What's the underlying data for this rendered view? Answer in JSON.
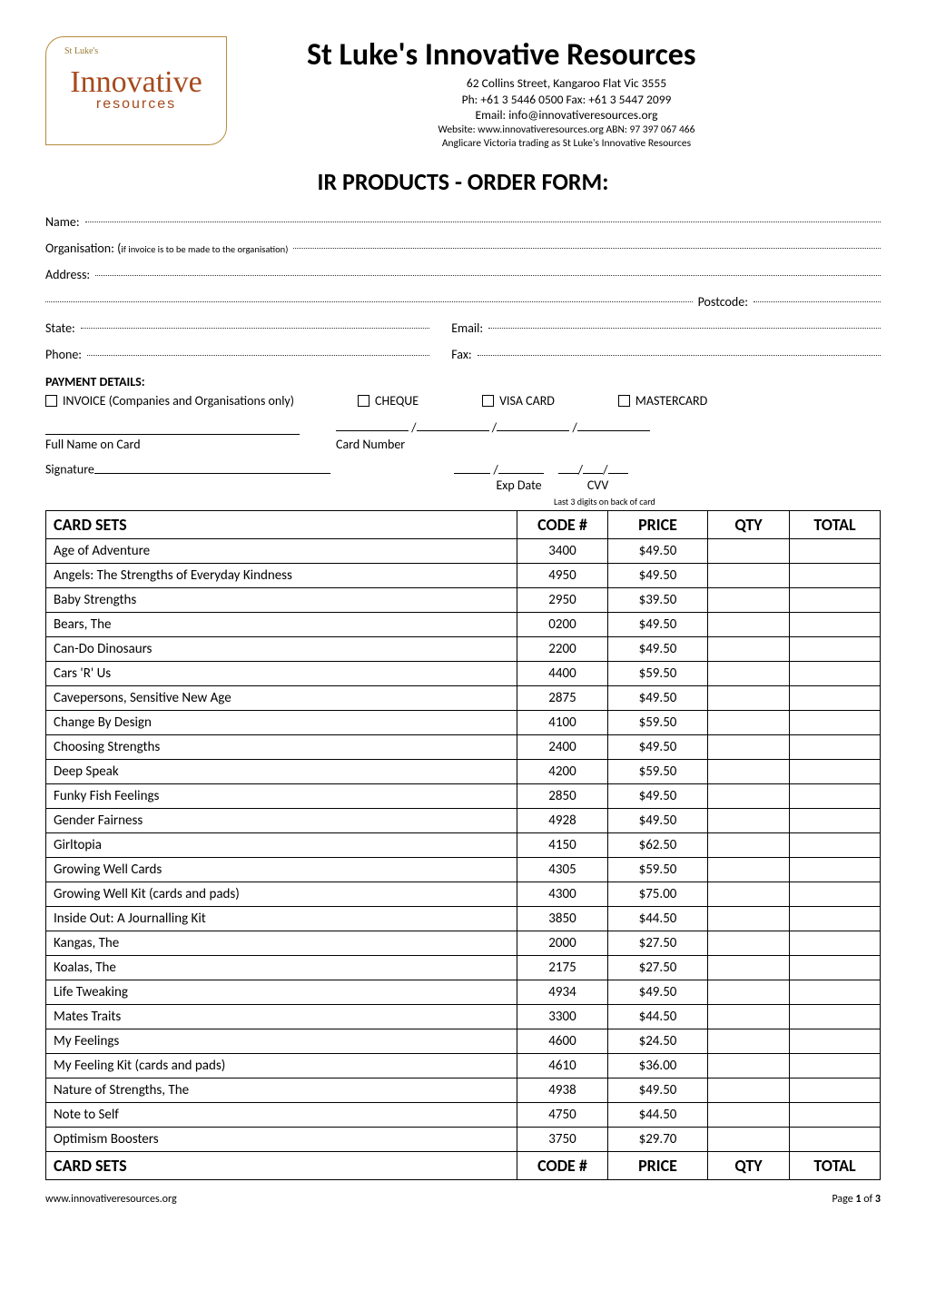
{
  "header": {
    "org_name": "St Luke's Innovative Resources",
    "address": "62 Collins Street, Kangaroo Flat   Vic   3555",
    "phone_fax": "Ph:  +61 3 5446 0500 Fax:  +61 3 5447 2099",
    "email_line": "Email:  info@innovativeresources.org",
    "website_abn": "Website:  www.innovativeresources.org ABN:  97 397 067 466",
    "trading_as": "Anglicare Victoria trading as St Luke's Innovative Resources",
    "logo_tag": "St Luke's",
    "logo_main": "Innovative",
    "logo_sub": "resources"
  },
  "form_title": "IR PRODUCTS - ORDER FORM:",
  "fields": {
    "name_label": "Name:",
    "org_label": "Organisation: (",
    "org_note": "if invoice is to be made to the organisation)",
    "address_label": "Address:",
    "postcode_label": "Postcode:",
    "state_label": "State:",
    "email_label": "Email:",
    "phone_label": "Phone:",
    "fax_label": "Fax:"
  },
  "payment": {
    "heading": "PAYMENT DETAILS:",
    "options": [
      "INVOICE (Companies and Organisations only)",
      "CHEQUE",
      "VISA CARD",
      "MASTERCARD"
    ],
    "full_name_label": "Full Name on Card",
    "card_number_label": "Card Number",
    "signature_label": "Signature",
    "exp_date_label": "Exp Date",
    "cvv_label": "CVV",
    "cvv_hint": "Last 3 digits on back of card"
  },
  "table": {
    "headers": {
      "name": "CARD SETS",
      "code": "CODE #",
      "price": "PRICE",
      "qty": "QTY",
      "total": "TOTAL"
    },
    "rows": [
      {
        "name": "Age of Adventure",
        "code": "3400",
        "price": "$49.50"
      },
      {
        "name": "Angels: The Strengths of Everyday Kindness",
        "code": "4950",
        "price": "$49.50"
      },
      {
        "name": "Baby Strengths",
        "code": "2950",
        "price": "$39.50"
      },
      {
        "name": "Bears, The",
        "code": "0200",
        "price": "$49.50"
      },
      {
        "name": "Can-Do Dinosaurs",
        "code": "2200",
        "price": "$49.50"
      },
      {
        "name": "Cars 'R' Us",
        "code": "4400",
        "price": "$59.50"
      },
      {
        "name": "Cavepersons, Sensitive New Age",
        "code": "2875",
        "price": "$49.50"
      },
      {
        "name": "Change By Design",
        "code": "4100",
        "price": "$59.50"
      },
      {
        "name": "Choosing Strengths",
        "code": "2400",
        "price": "$49.50"
      },
      {
        "name": "Deep Speak",
        "code": "4200",
        "price": "$59.50"
      },
      {
        "name": "Funky Fish Feelings",
        "code": "2850",
        "price": "$49.50"
      },
      {
        "name": "Gender Fairness",
        "code": "4928",
        "price": "$49.50"
      },
      {
        "name": "Girltopia",
        "code": "4150",
        "price": "$62.50"
      },
      {
        "name": "Growing Well Cards",
        "code": "4305",
        "price": "$59.50"
      },
      {
        "name": "Growing Well Kit (cards and pads)",
        "code": "4300",
        "price": "$75.00"
      },
      {
        "name": "Inside Out: A Journalling Kit",
        "code": "3850",
        "price": "$44.50"
      },
      {
        "name": "Kangas, The",
        "code": "2000",
        "price": "$27.50"
      },
      {
        "name": "Koalas, The",
        "code": "2175",
        "price": "$27.50"
      },
      {
        "name": "Life Tweaking",
        "code": "4934",
        "price": "$49.50"
      },
      {
        "name": "Mates Traits",
        "code": "3300",
        "price": "$44.50"
      },
      {
        "name": "My Feelings",
        "code": "4600",
        "price": "$24.50"
      },
      {
        "name": "My Feeling Kit (cards and pads)",
        "code": "4610",
        "price": "$36.00"
      },
      {
        "name": "Nature of Strengths, The",
        "code": "4938",
        "price": "$49.50"
      },
      {
        "name": "Note to Self",
        "code": "4750",
        "price": "$44.50"
      },
      {
        "name": "Optimism Boosters",
        "code": "3750",
        "price": "$29.70"
      }
    ]
  },
  "footer": {
    "left": "www.innovativeresources.org",
    "right": "Page 1 of 3"
  }
}
